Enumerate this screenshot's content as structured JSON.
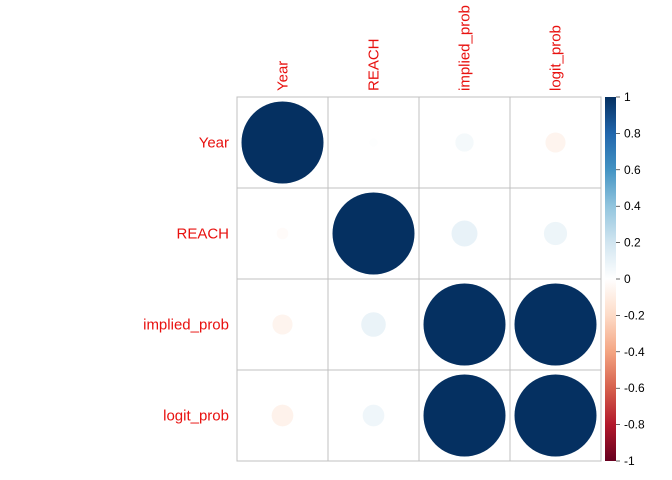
{
  "chart_data": {
    "type": "heatmap",
    "variables": [
      "Year",
      "REACH",
      "implied_prob",
      "logit_prob"
    ],
    "matrix": [
      [
        1.0,
        0.01,
        0.05,
        -0.06
      ],
      [
        -0.02,
        1.0,
        0.1,
        0.08
      ],
      [
        -0.06,
        0.09,
        1.0,
        1.0
      ],
      [
        -0.07,
        0.07,
        1.0,
        1.0
      ]
    ],
    "colorbar": {
      "ticks": [
        "1",
        "0.8",
        "0.6",
        "0.4",
        "0.2",
        "0",
        "-0.2",
        "-0.4",
        "-0.6",
        "-0.8",
        "-1"
      ],
      "range": [
        -1,
        1
      ],
      "low_color": "#67001f",
      "mid_color": "#ffffff",
      "high_color": "#053061"
    },
    "grid": true,
    "legend_placement": "right"
  }
}
